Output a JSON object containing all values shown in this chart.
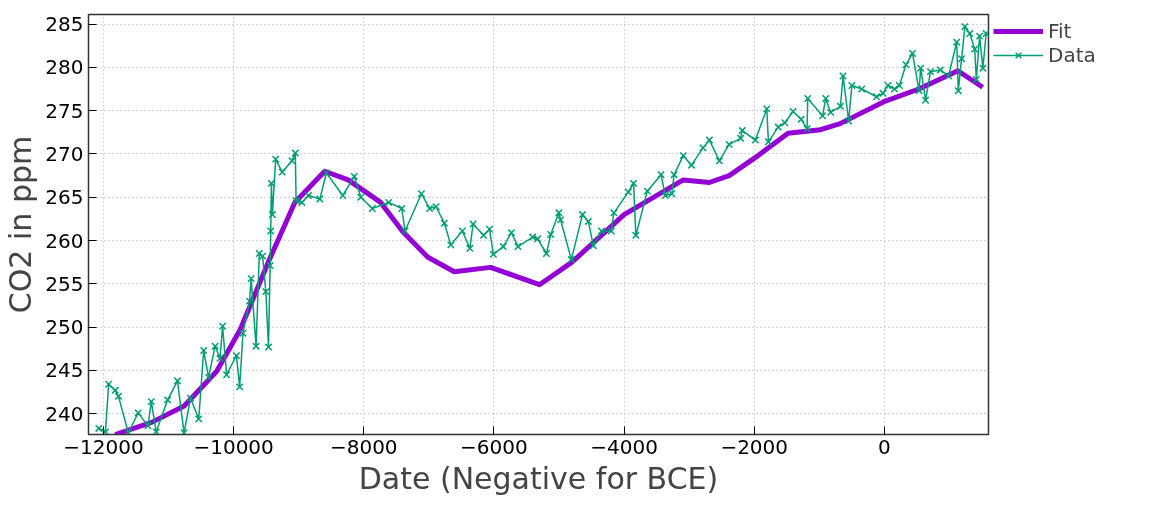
{
  "chart_data": {
    "type": "line",
    "xlabel": "Date (Negative for BCE)",
    "ylabel": "CO2 in ppm",
    "xlim": [
      -12230,
      1600
    ],
    "ylim": [
      237.6,
      286.1
    ],
    "xticks": [
      -12000,
      -10000,
      -8000,
      -6000,
      -4000,
      -2000,
      0
    ],
    "yticks": [
      240,
      245,
      250,
      255,
      260,
      265,
      270,
      275,
      280,
      285
    ],
    "grid": true,
    "legend": "top right",
    "line_style": "solid",
    "series": [
      {
        "name": "Fit",
        "color": "#9400d3",
        "marker": "none",
        "x": [
          -11820,
          -11260,
          -10760,
          -10260,
          -9900,
          -9450,
          -9060,
          -8600,
          -8240,
          -7740,
          -7400,
          -7020,
          -6610,
          -6050,
          -5300,
          -4800,
          -4000,
          -3090,
          -2690,
          -2385,
          -1980,
          -1480,
          -980,
          -680,
          -15,
          530,
          1130,
          1510
        ],
        "values": [
          237.6,
          239.0,
          240.9,
          244.9,
          249.7,
          257.8,
          264.4,
          268.0,
          267.0,
          264.4,
          261.0,
          258.1,
          256.4,
          256.9,
          254.9,
          257.5,
          263.0,
          267.0,
          266.7,
          267.5,
          269.6,
          272.4,
          272.8,
          273.5,
          276.0,
          277.5,
          279.6,
          277.7
        ]
      },
      {
        "name": "Data",
        "color": "#009e73",
        "marker": "cross",
        "x": [
          -12071,
          -11970,
          -11920,
          -11819,
          -11769,
          -11618,
          -11467,
          -11316,
          -11265,
          -11190,
          -11014,
          -10863,
          -10762,
          -10662,
          -10536,
          -10460,
          -10385,
          -10284,
          -10209,
          -10169,
          -10108,
          -9957,
          -9907,
          -9857,
          -9756,
          -9731,
          -9655,
          -9605,
          -9555,
          -9505,
          -9464,
          -9439,
          -9429,
          -9420,
          -9404,
          -9354,
          -9253,
          -9102,
          -9052,
          -9040,
          -8951,
          -8850,
          -8675,
          -8574,
          -8322,
          -8146,
          -8045,
          -7869,
          -7618,
          -7416,
          -7366,
          -7114,
          -6989,
          -6888,
          -6762,
          -6662,
          -6486,
          -6370,
          -6320,
          -6159,
          -6068,
          -6008,
          -5857,
          -5731,
          -5630,
          -5404,
          -5329,
          -5193,
          -5127,
          -5002,
          -4976,
          -4810,
          -4639,
          -4549,
          -4473,
          -4347,
          -4197,
          -4156,
          -3935,
          -3854,
          -3819,
          -3643,
          -3432,
          -3366,
          -3266,
          -3231,
          -3090,
          -2964,
          -2788,
          -2688,
          -2536,
          -2385,
          -2209,
          -2184,
          -1983,
          -1807,
          -1782,
          -1631,
          -1530,
          -1404,
          -1279,
          -1188,
          -1178,
          -951,
          -901,
          -826,
          -675,
          -635,
          -549,
          -499,
          -348,
          -121,
          -21,
          54,
          155,
          231,
          332,
          432,
          533,
          558,
          633,
          709,
          860,
          986,
          1111,
          1136,
          1187,
          1237,
          1312,
          1388,
          1413,
          1463,
          1514,
          1564
        ],
        "values": [
          238.3,
          237.9,
          243.4,
          242.7,
          242.0,
          237.8,
          240.1,
          238.6,
          241.4,
          237.9,
          241.6,
          243.8,
          237.8,
          241.8,
          239.4,
          247.3,
          244.2,
          247.8,
          246.4,
          250.1,
          244.5,
          246.7,
          243.1,
          249.3,
          253.0,
          255.6,
          247.8,
          258.5,
          258.2,
          254.1,
          247.7,
          257.1,
          261.1,
          266.6,
          263.0,
          269.4,
          267.9,
          269.2,
          270.1,
          264.6,
          264.4,
          265.2,
          264.8,
          267.8,
          265.2,
          267.4,
          265.0,
          263.7,
          264.4,
          263.7,
          261.1,
          265.4,
          263.7,
          263.9,
          262.0,
          259.5,
          261.1,
          259.1,
          261.9,
          260.6,
          261.3,
          258.4,
          259.3,
          260.9,
          259.3,
          260.4,
          260.2,
          258.5,
          260.7,
          263.2,
          262.4,
          257.8,
          263.0,
          262.2,
          259.4,
          261.1,
          261.1,
          263.2,
          265.6,
          266.6,
          260.6,
          265.7,
          267.6,
          265.2,
          265.4,
          267.6,
          269.8,
          268.7,
          270.7,
          271.6,
          269.2,
          271.1,
          271.8,
          272.7,
          271.6,
          275.2,
          271.4,
          273.1,
          273.6,
          274.9,
          274.0,
          272.9,
          276.4,
          274.4,
          276.4,
          274.8,
          275.5,
          279.0,
          273.8,
          277.9,
          277.5,
          276.6,
          277.0,
          277.9,
          277.5,
          277.9,
          280.3,
          281.6,
          277.3,
          279.9,
          276.2,
          279.5,
          279.7,
          279.0,
          282.9,
          277.3,
          281.0,
          284.7,
          283.9,
          282.1,
          278.6,
          283.6,
          279.9,
          283.9
        ]
      }
    ]
  }
}
